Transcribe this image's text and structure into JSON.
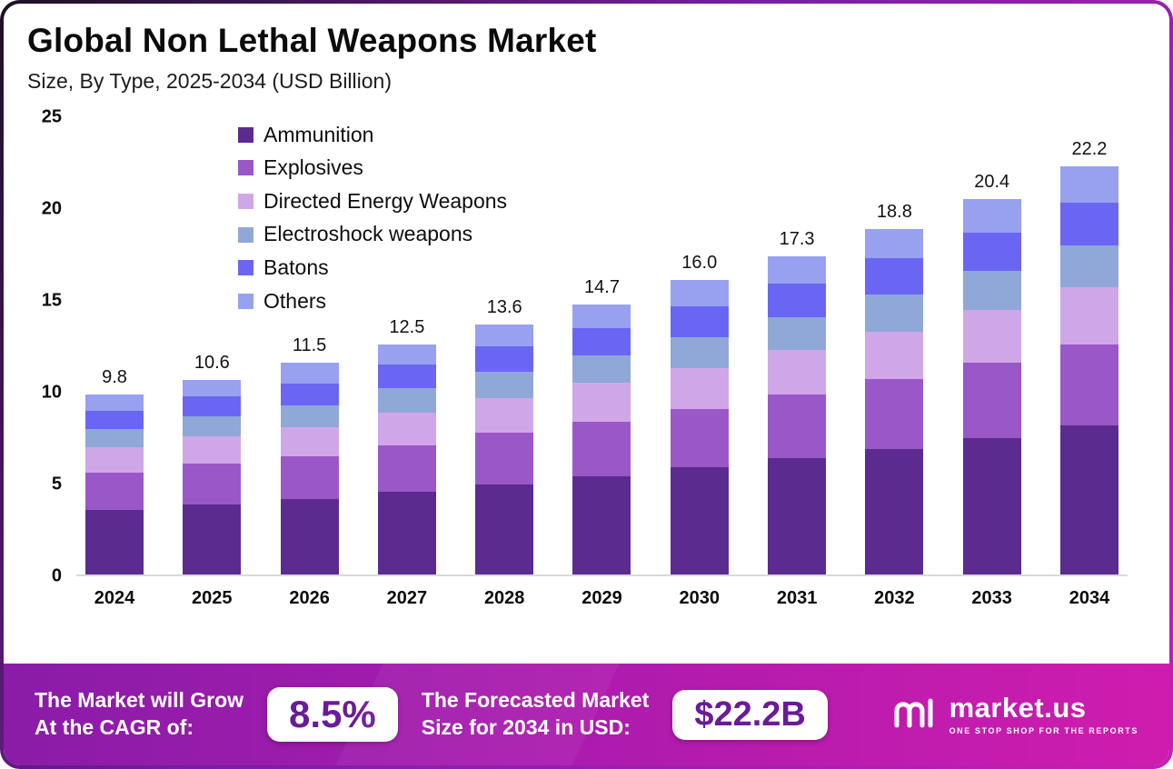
{
  "header": {
    "title": "Global Non Lethal Weapons Market",
    "subtitle": "Size, By Type, 2025-2034 (USD Billion)"
  },
  "chart_data": {
    "type": "bar",
    "stacked": true,
    "title": "Global Non Lethal Weapons Market Size, By Type, 2025-2034 (USD Billion)",
    "xlabel": "Year",
    "ylabel": "USD Billion",
    "ylim": [
      0,
      25
    ],
    "yticks": [
      25,
      20,
      15,
      10,
      5,
      0
    ],
    "grid": false,
    "legend_position": "top-left-inside",
    "categories": [
      "2024",
      "2025",
      "2026",
      "2027",
      "2028",
      "2029",
      "2030",
      "2031",
      "2032",
      "2033",
      "2034"
    ],
    "totals": [
      9.8,
      10.6,
      11.5,
      12.5,
      13.6,
      14.7,
      16.0,
      17.3,
      18.8,
      20.4,
      22.2
    ],
    "series": [
      {
        "name": "Ammunition",
        "color": "#5b2b8f",
        "values": [
          3.5,
          3.8,
          4.1,
          4.5,
          4.9,
          5.3,
          5.8,
          6.3,
          6.8,
          7.4,
          8.1
        ]
      },
      {
        "name": "Explosives",
        "color": "#9a57c8",
        "values": [
          2.0,
          2.2,
          2.3,
          2.5,
          2.8,
          3.0,
          3.2,
          3.5,
          3.8,
          4.1,
          4.4
        ]
      },
      {
        "name": "Directed Energy Weapons",
        "color": "#cfa7e8",
        "values": [
          1.4,
          1.5,
          1.6,
          1.8,
          1.9,
          2.1,
          2.2,
          2.4,
          2.6,
          2.9,
          3.1
        ]
      },
      {
        "name": "Electroshock weapons",
        "color": "#8fa8d8",
        "values": [
          1.0,
          1.1,
          1.2,
          1.3,
          1.4,
          1.5,
          1.7,
          1.8,
          2.0,
          2.1,
          2.3
        ]
      },
      {
        "name": "Batons",
        "color": "#6a66f3",
        "values": [
          1.0,
          1.1,
          1.2,
          1.3,
          1.4,
          1.5,
          1.7,
          1.8,
          2.0,
          2.1,
          2.3
        ]
      },
      {
        "name": "Others",
        "color": "#97a1f0",
        "values": [
          0.9,
          0.9,
          1.1,
          1.1,
          1.2,
          1.3,
          1.4,
          1.5,
          1.6,
          1.8,
          2.0
        ]
      }
    ]
  },
  "footer": {
    "growth_line1": "The Market will Grow",
    "growth_line2": "At the CAGR of:",
    "cagr_value": "8.5%",
    "forecast_line1": "The Forecasted Market",
    "forecast_line2": "Size for 2034 in USD:",
    "forecast_value": "$22.2B",
    "brand_name": "market.us",
    "brand_tagline": "ONE STOP SHOP FOR THE REPORTS",
    "gradient_start": "#8a1ca8",
    "gradient_end": "#cf1cae"
  }
}
